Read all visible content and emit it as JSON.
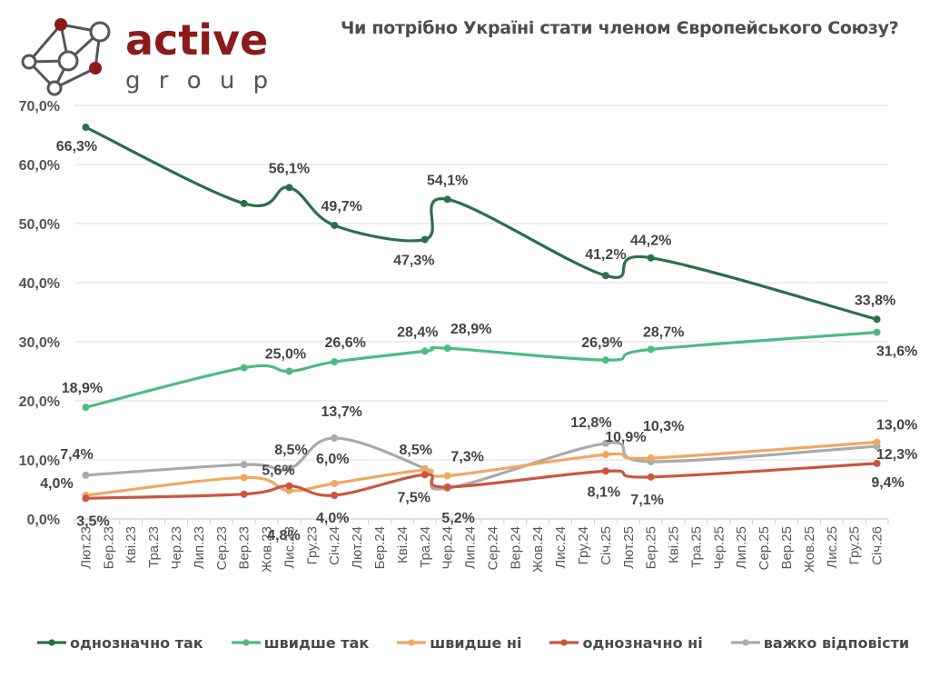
{
  "logo": {
    "brand_word": "active",
    "brand_sub": "g r o u p",
    "brand_color": "#8b1a1a"
  },
  "chart_data": {
    "type": "line",
    "title": "Чи потрібно Україні стати членом Європейського Союзу?",
    "xlabel": "",
    "ylabel": "",
    "ylim": [
      0,
      70
    ],
    "yticks": [
      "0,0%",
      "10,0%",
      "20,0%",
      "30,0%",
      "40,0%",
      "50,0%",
      "60,0%",
      "70,0%"
    ],
    "ytick_values": [
      0,
      10,
      20,
      30,
      40,
      50,
      60,
      70
    ],
    "grid": true,
    "legend_position": "bottom",
    "categories": [
      "Лют.23",
      "Бер.23",
      "Кві.23",
      "Тра.23",
      "Чер.23",
      "Лип.23",
      "Сер.23",
      "Вер.23",
      "Жов.23",
      "Лис.23",
      "Гру.23",
      "Січ.24",
      "Лют.24",
      "Бер.24",
      "Кві.24",
      "Тра.24",
      "Чер.24",
      "Лип.24",
      "Сер.24",
      "Вер.24",
      "Жов.24",
      "Лис.24",
      "Гру.24",
      "Січ.25",
      "Лют.25",
      "Бер.25",
      "Кві.25",
      "Тра.25",
      "Чер.25",
      "Лип.25",
      "Сер.25",
      "Вер.25",
      "Жов.25",
      "Лис.25",
      "Гру.25",
      "Січ.26"
    ],
    "point_categories": [
      "Лют.23",
      "Вер.23",
      "Лис.23",
      "Січ.24",
      "Тра.24",
      "Чер.24",
      "Січ.25",
      "Бер.25",
      "Січ.26"
    ],
    "series": [
      {
        "name": "однозначно так",
        "color": "#2a7048",
        "values": [
          66.3,
          53.4,
          56.1,
          49.7,
          47.3,
          54.1,
          41.2,
          44.2,
          33.8
        ],
        "labels": [
          "66,3%",
          "",
          "56,1%",
          "49,7%",
          "47,3%",
          "54,1%",
          "41,2%",
          "44,2%",
          "33,8%"
        ]
      },
      {
        "name": "швидше так",
        "color": "#4dbb84",
        "values": [
          18.9,
          25.6,
          25.0,
          26.6,
          28.4,
          28.9,
          26.9,
          28.7,
          31.6
        ],
        "labels": [
          "18,9%",
          "",
          "25,0%",
          "26,6%",
          "28,4%",
          "28,9%",
          "26,9%",
          "28,7%",
          "31,6%"
        ]
      },
      {
        "name": "швидше ні",
        "color": "#f0a860",
        "values": [
          4.0,
          7.0,
          4.8,
          6.0,
          8.3,
          7.3,
          10.9,
          10.3,
          13.0
        ],
        "labels": [
          "4,0%",
          "",
          "4,8%",
          "6,0%",
          "",
          "7,3%",
          "10,9%",
          "10,3%",
          "13,0%"
        ]
      },
      {
        "name": "однозначно ні",
        "color": "#cc5540",
        "values": [
          3.5,
          4.2,
          5.6,
          4.0,
          7.5,
          5.4,
          8.1,
          7.1,
          9.4
        ],
        "labels": [
          "3,5%",
          "",
          "5,6%",
          "4,0%",
          "7,5%",
          "",
          "8,1%",
          "7,1%",
          "9,4%"
        ]
      },
      {
        "name": "важко відповісти",
        "color": "#aaaaaa",
        "values": [
          7.4,
          9.2,
          8.5,
          13.7,
          8.5,
          5.2,
          12.8,
          9.7,
          12.3
        ],
        "labels": [
          "7,4%",
          "",
          "8,5%",
          "13,7%",
          "8,5%",
          "5,2%",
          "12,8%",
          "",
          "12,3%"
        ]
      }
    ]
  }
}
